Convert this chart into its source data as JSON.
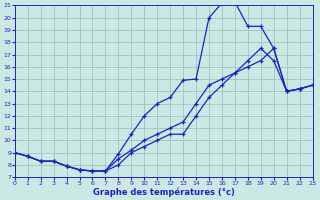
{
  "title": "Graphe des températures (°c)",
  "xlim": [
    0,
    23
  ],
  "ylim": [
    7,
    21
  ],
  "xticks": [
    0,
    1,
    2,
    3,
    4,
    5,
    6,
    7,
    8,
    9,
    10,
    11,
    12,
    13,
    14,
    15,
    16,
    17,
    18,
    19,
    20,
    21,
    22,
    23
  ],
  "yticks": [
    7,
    8,
    9,
    10,
    11,
    12,
    13,
    14,
    15,
    16,
    17,
    18,
    19,
    20,
    21
  ],
  "bg_color": "#cce8e5",
  "line_color": "#2222bb",
  "grid_color": "#99bbbb",
  "line1_x": [
    0,
    1,
    2,
    3,
    4,
    5,
    6,
    7,
    8,
    9,
    10,
    11,
    12,
    13,
    14,
    15,
    16,
    17,
    18,
    19,
    20,
    21,
    22,
    23
  ],
  "line1_y": [
    9.0,
    8.7,
    8.3,
    8.3,
    7.9,
    7.6,
    7.5,
    7.5,
    8.9,
    10.5,
    12.0,
    13.0,
    13.5,
    14.9,
    15.0,
    20.0,
    21.2,
    21.3,
    19.3,
    19.3,
    17.5,
    14.0,
    14.2,
    14.5
  ],
  "line2_x": [
    0,
    1,
    2,
    3,
    4,
    5,
    6,
    7,
    8,
    9,
    10,
    11,
    12,
    13,
    14,
    15,
    16,
    17,
    18,
    19,
    20,
    21,
    22,
    23
  ],
  "line2_y": [
    9.0,
    8.7,
    8.3,
    8.3,
    7.9,
    7.6,
    7.5,
    7.5,
    8.5,
    9.2,
    10.0,
    10.5,
    11.0,
    11.5,
    13.0,
    14.5,
    15.0,
    15.5,
    16.0,
    16.5,
    17.5,
    14.0,
    14.2,
    14.5
  ],
  "line3_x": [
    0,
    1,
    2,
    3,
    4,
    5,
    6,
    7,
    8,
    9,
    10,
    11,
    12,
    13,
    14,
    15,
    16,
    17,
    18,
    19,
    20,
    21,
    22,
    23
  ],
  "line3_y": [
    9.0,
    8.7,
    8.3,
    8.3,
    7.9,
    7.6,
    7.5,
    7.5,
    8.0,
    9.0,
    9.5,
    10.0,
    10.5,
    10.5,
    12.0,
    13.5,
    14.5,
    15.5,
    16.5,
    17.5,
    16.5,
    14.0,
    14.2,
    14.5
  ]
}
